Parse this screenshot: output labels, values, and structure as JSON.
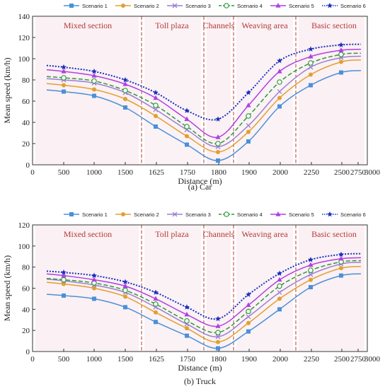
{
  "panels": [
    {
      "caption": "(a) Car",
      "ylabel": "Mean speed (km/h)",
      "xlabel": "Distance (m)"
    },
    {
      "caption": "(b) Truck",
      "ylabel": "Mean speed (km/h)",
      "xlabel": "Distance (m)"
    }
  ],
  "sections": [
    "Mixed section",
    "Toll plaza",
    "Channels",
    "Weaving area",
    "Basic section"
  ],
  "chart_data": [
    {
      "type": "line",
      "title": "",
      "caption": "(a) Car",
      "xlabel": "Distance (m)",
      "ylabel": "Mean speed (km/h)",
      "x_tick_labels": [
        "0",
        "500",
        "1000",
        "1500",
        "1625",
        "1750",
        "1800",
        "1900",
        "2000",
        "2250",
        "2500",
        "2750",
        "3000"
      ],
      "y_ticks": [
        0,
        20,
        40,
        60,
        80,
        100,
        120,
        140
      ],
      "ylim": [
        0,
        140
      ],
      "legend_position": "top",
      "sections": [
        "Mixed section",
        "Toll plaza",
        "Channels",
        "Weaving area",
        "Basic section"
      ],
      "x": [
        500,
        1000,
        1500,
        1625,
        1750,
        1800,
        1900,
        2000,
        2250,
        2750
      ],
      "series": [
        {
          "name": "Scenario 1",
          "color": "#4a90d9",
          "dash": "solid",
          "marker": "square",
          "values": [
            69,
            65,
            54,
            36,
            19,
            4,
            22,
            55,
            75,
            87
          ]
        },
        {
          "name": "Scenario 2",
          "color": "#e0a030",
          "dash": "solid",
          "marker": "circle",
          "values": [
            75,
            71,
            62,
            46,
            27,
            12,
            31,
            63,
            85,
            97
          ]
        },
        {
          "name": "Scenario 3",
          "color": "#9b7fd4",
          "dash": "solid",
          "marker": "x",
          "values": [
            80,
            77,
            68,
            52,
            33,
            17,
            37,
            69,
            92,
            101
          ]
        },
        {
          "name": "Scenario 4",
          "color": "#2e9a3a",
          "dash": "dashed",
          "marker": "open-circle",
          "values": [
            82,
            79,
            70,
            56,
            36,
            20,
            46,
            78,
            96,
            104
          ]
        },
        {
          "name": "Scenario 5",
          "color": "#b040e0",
          "dash": "solid",
          "marker": "triangle",
          "values": [
            88,
            84,
            76,
            63,
            43,
            26,
            56,
            88,
            102,
            108
          ]
        },
        {
          "name": "Scenario 6",
          "color": "#1a2fc0",
          "dash": "dotted",
          "marker": "star",
          "values": [
            92,
            88,
            80,
            68,
            51,
            43,
            68,
            98,
            109,
            113
          ]
        }
      ]
    },
    {
      "type": "line",
      "title": "",
      "caption": "(b) Truck",
      "xlabel": "Distance (m)",
      "ylabel": "Mean speed (km/h)",
      "x_tick_labels": [
        "0",
        "500",
        "1000",
        "1500",
        "1625",
        "1750",
        "1800",
        "1900",
        "2000",
        "2250",
        "2500",
        "2750",
        "3000"
      ],
      "y_ticks": [
        0,
        20,
        40,
        60,
        80,
        100,
        120
      ],
      "ylim": [
        0,
        120
      ],
      "legend_position": "top",
      "sections": [
        "Mixed section",
        "Toll plaza",
        "Channels",
        "Weaving area",
        "Basic section"
      ],
      "x": [
        500,
        1000,
        1500,
        1625,
        1750,
        1800,
        1900,
        2000,
        2250,
        2750
      ],
      "series": [
        {
          "name": "Scenario 1",
          "color": "#4a90d9",
          "dash": "solid",
          "marker": "square",
          "values": [
            53,
            50,
            42,
            28,
            15,
            3,
            19,
            40,
            61,
            72
          ]
        },
        {
          "name": "Scenario 2",
          "color": "#e0a030",
          "dash": "solid",
          "marker": "circle",
          "values": [
            64,
            60,
            52,
            37,
            22,
            9,
            27,
            50,
            68,
            79
          ]
        },
        {
          "name": "Scenario 3",
          "color": "#9b7fd4",
          "dash": "solid",
          "marker": "x",
          "values": [
            67,
            63,
            56,
            42,
            26,
            14,
            33,
            56,
            73,
            83
          ]
        },
        {
          "name": "Scenario 4",
          "color": "#2e9a3a",
          "dash": "dashed",
          "marker": "open-circle",
          "values": [
            68,
            65,
            58,
            45,
            29,
            18,
            38,
            62,
            77,
            85
          ]
        },
        {
          "name": "Scenario 5",
          "color": "#b040e0",
          "dash": "solid",
          "marker": "triangle",
          "values": [
            72,
            68,
            62,
            50,
            35,
            24,
            44,
            68,
            82,
            88
          ]
        },
        {
          "name": "Scenario 6",
          "color": "#1a2fc0",
          "dash": "dotted",
          "marker": "star",
          "values": [
            75,
            72,
            66,
            56,
            42,
            31,
            54,
            74,
            87,
            92
          ]
        }
      ]
    }
  ]
}
